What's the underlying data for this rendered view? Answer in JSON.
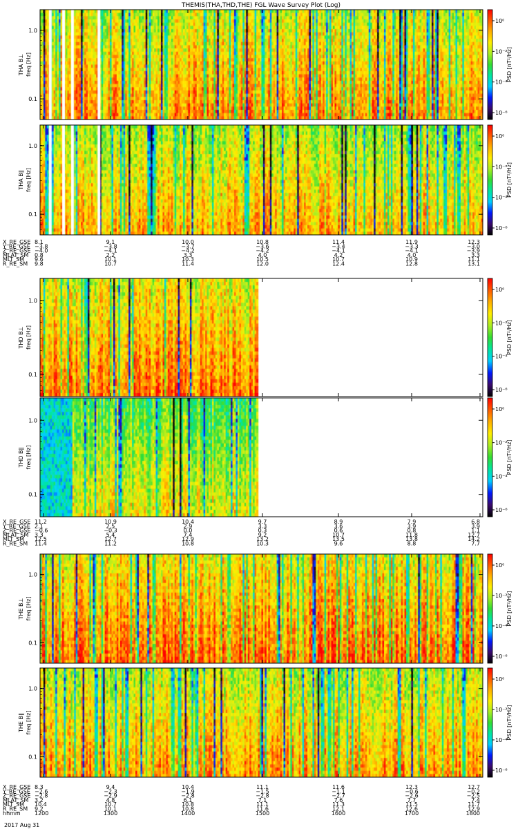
{
  "title": "THEMIS(THA,THD,THE) FGL Wave Survey Plot (Log)",
  "chart_data": {
    "type": "heatmap",
    "colorscale": [
      "#000000",
      "#3a0a6e",
      "#0019ff",
      "#00cfff",
      "#00e6a0",
      "#33dd33",
      "#aaee22",
      "#ffee00",
      "#ffb000",
      "#ff5a00",
      "#ff0000"
    ],
    "panels": [
      {
        "id": "tha_bl",
        "probe": "THA",
        "ylabel_top": "THA B⊥",
        "ylabel_bottom": "freq [Hz]",
        "yscale": "log",
        "ytick_labels": [
          "1.0",
          "0.1"
        ],
        "zlabel": "PSD [nT²/Hz]",
        "zticks": [
          "10⁰",
          "10⁻²",
          "10⁻⁴",
          "10⁻⁶"
        ],
        "xcoverage": 1.0,
        "gaps": [
          0.02,
          0.05,
          0.07,
          0.13
        ],
        "bias": 0.0
      },
      {
        "id": "tha_bpar",
        "probe": "THA",
        "ylabel_top": "THA B∥",
        "ylabel_bottom": "freq [Hz]",
        "yscale": "log",
        "ytick_labels": [
          "1.0",
          "0.1"
        ],
        "zlabel": "PSD [nT²/Hz]",
        "zticks": [
          "10⁰",
          "10⁻²",
          "10⁻⁴",
          "10⁻⁶"
        ],
        "xcoverage": 1.0,
        "gaps": [
          0.02,
          0.05,
          0.07,
          0.13
        ],
        "bias": -0.05
      },
      {
        "id": "thd_bl",
        "probe": "THD",
        "ylabel_top": "THD B⊥",
        "ylabel_bottom": "freq [Hz]",
        "yscale": "log",
        "ytick_labels": [
          "1.0",
          "0.1"
        ],
        "zlabel": "PSD [nT²/Hz]",
        "zticks": [
          "10⁰",
          "10⁻²",
          "10⁻⁴",
          "10⁻⁶"
        ],
        "xcoverage": 0.49,
        "gaps": [],
        "bias": 0.02
      },
      {
        "id": "thd_bpar",
        "probe": "THD",
        "ylabel_top": "THD B∥",
        "ylabel_bottom": "freq [Hz]",
        "yscale": "log",
        "ytick_labels": [
          "1.0",
          "0.1"
        ],
        "zlabel": "PSD [nT²/Hz]",
        "zticks": [
          "10⁰",
          "10⁻²",
          "10⁻⁴",
          "10⁻⁶"
        ],
        "xcoverage": 0.49,
        "gaps": [],
        "bias": -0.15
      },
      {
        "id": "the_bl",
        "probe": "THE",
        "ylabel_top": "THE B⊥",
        "ylabel_bottom": "freq [Hz]",
        "yscale": "log",
        "ytick_labels": [
          "1.0",
          "0.1"
        ],
        "zlabel": "PSD [nT²/Hz]",
        "zticks": [
          "10⁰",
          "10⁻²",
          "10⁻⁴",
          "10⁻⁶"
        ],
        "xcoverage": 1.0,
        "gaps": [],
        "bias": 0.05
      },
      {
        "id": "the_bpar",
        "probe": "THE",
        "ylabel_top": "THE B∥",
        "ylabel_bottom": "freq [Hz]",
        "yscale": "log",
        "ytick_labels": [
          "1.0",
          "0.1"
        ],
        "zlabel": "PSD [nT²/Hz]",
        "zticks": [
          "10⁰",
          "10⁻²",
          "10⁻⁴",
          "10⁻⁶"
        ],
        "xcoverage": 1.0,
        "gaps": [],
        "bias": -0.02
      }
    ],
    "ephemeris": [
      {
        "probe": "THA",
        "rows": [
          {
            "label": "X_RE_GSE",
            "values": [
              "8.1",
              "9.1",
              "10.0",
              "10.8",
              "11.4",
              "11.9",
              "12.3"
            ]
          },
          {
            "label": "Y_RE_GSE",
            "values": [
              "−3.8",
              "−3.8",
              "−3.7",
              "−3.6",
              "−3.4",
              "−3.3",
              "−3.0"
            ]
          },
          {
            "label": "Z_RE_GSE",
            "values": [
              "−4.0",
              "−4.1",
              "−4.2",
              "−4.2",
              "−4.1",
              "−4.1",
              "−3.9"
            ]
          },
          {
            "label": "MLAT_SM",
            "values": [
              "0.8",
              "2.2",
              "3.3",
              "4.0",
              "4.2",
              "4.0",
              "3.3"
            ]
          },
          {
            "label": "MLT_SM",
            "values": [
              "9.6",
              "10.1",
              "10.3",
              "10.5",
              "10.7",
              "10.9",
              "11.1"
            ]
          },
          {
            "label": "R_RE_SM",
            "values": [
              "9.8",
              "10.7",
              "11.4",
              "12.0",
              "12.4",
              "12.8",
              "13.1"
            ]
          }
        ]
      },
      {
        "probe": "THD",
        "rows": [
          {
            "label": "X_RE_GSE",
            "values": [
              "11.2",
              "10.9",
              "10.4",
              "9.7",
              "8.9",
              "7.9",
              "6.8"
            ]
          },
          {
            "label": "Y_RE_GSE",
            "values": [
              "2.1",
              "2.5",
              "2.9",
              "3.3",
              "3.6",
              "3.9",
              "3.9"
            ]
          },
          {
            "label": "Z_RE_GSE",
            "values": [
              "−0.6",
              "−0.3",
              "0.0",
              "0.3",
              "0.6",
              "0.8",
              "1.1"
            ]
          },
          {
            "label": "MLAT_SM",
            "values": [
              "3.3",
              "5.4",
              "7.4",
              "9.2",
              "10.7",
              "11.8",
              "12.7"
            ]
          },
          {
            "label": "MLT_SM",
            "values": [
              "12.5",
              "12.7",
              "12.9",
              "13.2",
              "13.5",
              "13.8",
              "14.2"
            ]
          },
          {
            "label": "R_RE_SM",
            "values": [
              "11.4",
              "11.2",
              "10.8",
              "10.3",
              "9.6",
              "8.8",
              "7.7"
            ]
          }
        ]
      },
      {
        "probe": "THE",
        "rows": [
          {
            "label": "X_RE_GSE",
            "values": [
              "8.3",
              "9.4",
              "10.4",
              "11.1",
              "11.6",
              "12.3",
              "12.7"
            ]
          },
          {
            "label": "Y_RE_GSE",
            "values": [
              "−2.6",
              "−2.3",
              "−1.9",
              "−1.5",
              "−1.1",
              "−0.6",
              "−0.2"
            ]
          },
          {
            "label": "Z_RE_GSE",
            "values": [
              "−2.8",
              "−2.9",
              "−2.8",
              "−2.8",
              "−2.7",
              "−2.6",
              "−2.5"
            ]
          },
          {
            "label": "MLAT_SM",
            "values": [
              "3.2",
              "4.8",
              "6.1",
              "7.1",
              "7.6",
              "7.7",
              "7.4"
            ]
          },
          {
            "label": "MLT_SM",
            "values": [
              "10.4",
              "10.7",
              "10.8",
              "11.1",
              "11.3",
              "11.5",
              "11.7"
            ]
          },
          {
            "label": "R_RE_SM",
            "values": [
              "9.2",
              "10.1",
              "10.8",
              "11.6",
              "12.1",
              "12.6",
              "12.9"
            ]
          },
          {
            "label": "hhmm",
            "values": [
              "1200",
              "1300",
              "1400",
              "1500",
              "1600",
              "1700",
              "1800"
            ]
          }
        ]
      }
    ],
    "date_label": "2017 Aug 31"
  }
}
